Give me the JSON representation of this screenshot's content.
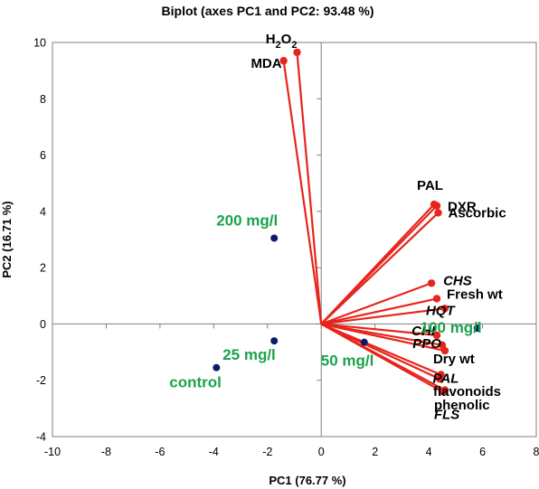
{
  "chart_data": {
    "type": "scatter",
    "subtype": "biplot",
    "title": "Biplot (axes PC1 and PC2: 93.48 %)",
    "xlabel": "PC1 (76.77 %)",
    "ylabel": "PC2 (16.71 %)",
    "xlim": [
      -10,
      8
    ],
    "ylim": [
      -4,
      10
    ],
    "xticks": [
      -10,
      -8,
      -6,
      -4,
      -2,
      0,
      2,
      4,
      6,
      8
    ],
    "yticks": [
      -4,
      -2,
      0,
      2,
      4,
      6,
      8,
      10
    ],
    "vector_color": "#e8241c",
    "observation_point_color": "#0b1a6b",
    "observation_label_color": "#1aa34a",
    "grid": false,
    "variables": [
      {
        "name": "H2O2",
        "label_main": "H",
        "label_sub1": "2",
        "label_mid": "O",
        "label_sub2": "2",
        "x": -0.9,
        "y": 9.65
      },
      {
        "name": "MDA",
        "x": -1.4,
        "y": 9.35
      },
      {
        "name": "PAL",
        "x": 4.2,
        "y": 4.25
      },
      {
        "name": "DXR",
        "x": 4.3,
        "y": 4.2
      },
      {
        "name": "Ascorbic",
        "x": 4.35,
        "y": 3.95
      },
      {
        "name": "CHS",
        "italic": true,
        "x": 4.1,
        "y": 1.45
      },
      {
        "name": "Fresh wt",
        "x": 4.3,
        "y": 0.9
      },
      {
        "name": "HQT",
        "italic": true,
        "x": 4.6,
        "y": 0.55
      },
      {
        "name": "CHI",
        "italic": true,
        "x": 4.3,
        "y": -0.4
      },
      {
        "name": "PPO",
        "italic": true,
        "x": 4.5,
        "y": -0.75
      },
      {
        "name": "Dry wt",
        "x": 4.6,
        "y": -0.95
      },
      {
        "name": "PAL",
        "italic": true,
        "x": 4.45,
        "y": -1.8
      },
      {
        "name": "flavonoids",
        "x": 4.4,
        "y": -1.95
      },
      {
        "name": "phenolic",
        "x": 4.5,
        "y": -2.4
      },
      {
        "name": "FLS",
        "italic": true,
        "x": 4.6,
        "y": -2.35
      }
    ],
    "observations": [
      {
        "name": "control",
        "x": -3.9,
        "y": -1.55
      },
      {
        "name": "25 mg/l",
        "x": -1.75,
        "y": -0.6
      },
      {
        "name": "200 mg/l",
        "x": -1.75,
        "y": 3.05
      },
      {
        "name": "50 mg/l",
        "x": 1.6,
        "y": -0.65
      },
      {
        "name": "100 mg/l",
        "x": 5.8,
        "y": -0.15
      }
    ]
  }
}
